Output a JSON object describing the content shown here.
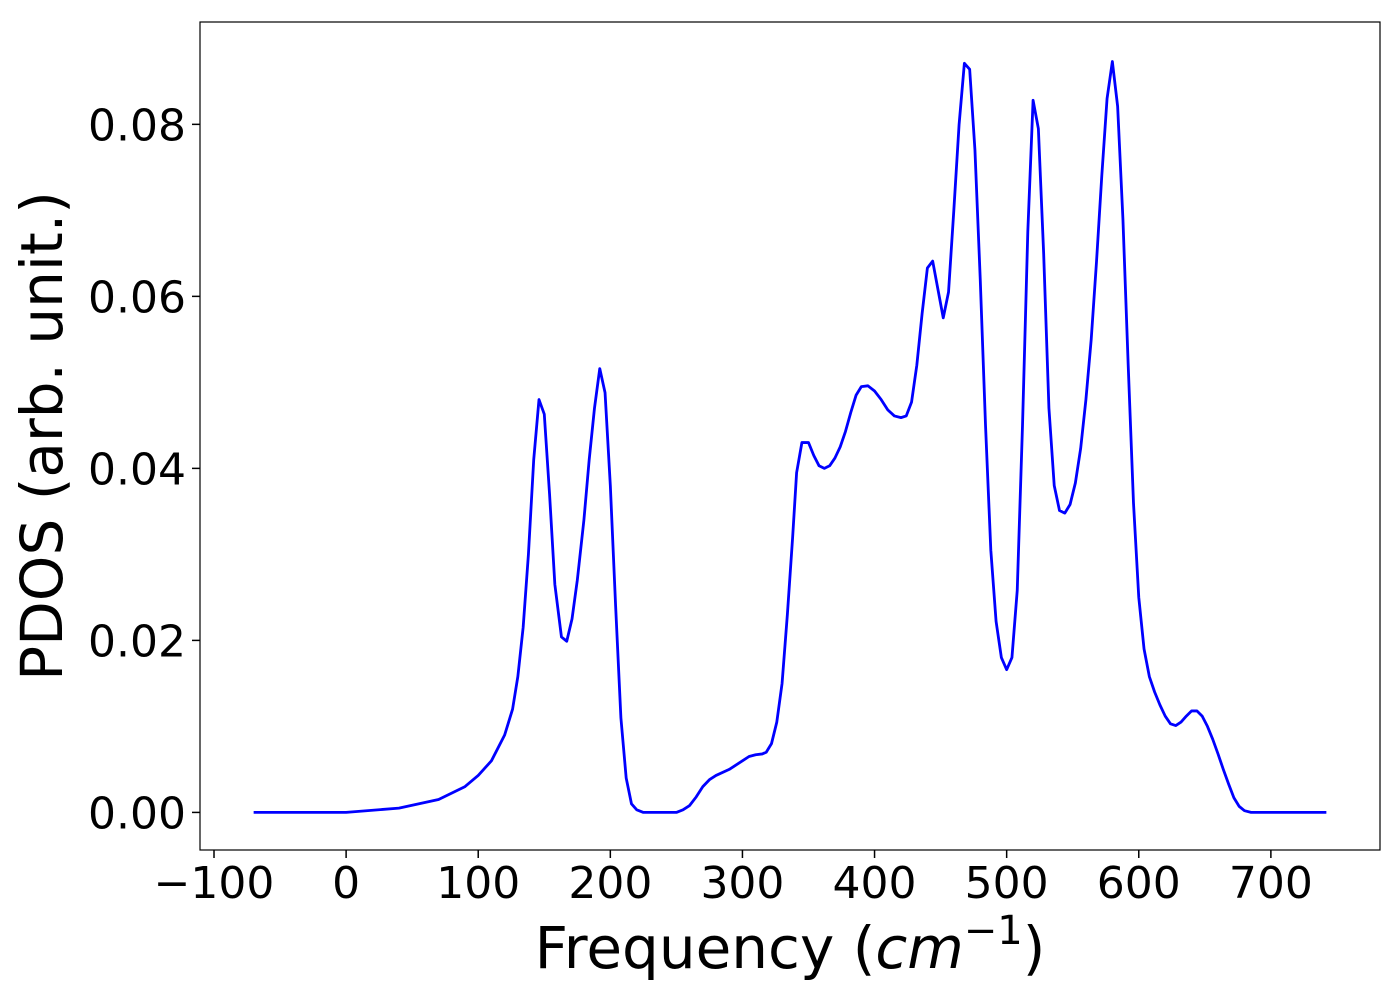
{
  "chart_data": {
    "type": "line",
    "xlabel": [
      "Frequency (",
      "cm",
      "−1",
      ")"
    ],
    "ylabel": "PDOS (arb. unit.)",
    "color": "#0000ff",
    "x": [
      -70,
      0,
      40,
      70,
      90,
      100,
      110,
      120,
      126,
      130,
      134,
      138,
      142,
      146,
      150,
      154,
      158,
      163,
      167,
      171,
      175,
      180,
      184,
      188,
      192,
      196,
      200,
      204,
      208,
      212,
      216,
      220,
      225,
      250,
      255,
      260,
      265,
      270,
      275,
      280,
      290,
      300,
      305,
      310,
      315,
      318,
      322,
      326,
      330,
      334,
      338,
      341,
      345,
      350,
      354,
      358,
      362,
      366,
      370,
      374,
      378,
      382,
      386,
      390,
      395,
      400,
      405,
      410,
      415,
      420,
      424,
      428,
      432,
      436,
      440,
      444,
      448,
      452,
      456,
      460,
      464,
      468,
      472,
      476,
      480,
      484,
      488,
      492,
      496,
      500,
      504,
      508,
      512,
      516,
      520,
      524,
      528,
      532,
      536,
      540,
      544,
      548,
      552,
      556,
      560,
      564,
      568,
      572,
      576,
      580,
      584,
      588,
      592,
      596,
      600,
      604,
      608,
      612,
      616,
      620,
      624,
      628,
      632,
      636,
      640,
      644,
      648,
      652,
      656,
      660,
      664,
      668,
      672,
      676,
      680,
      685,
      742
    ],
    "values": [
      0,
      0,
      0.0005,
      0.0015,
      0.003,
      0.0043,
      0.006,
      0.009,
      0.012,
      0.0158,
      0.0215,
      0.03,
      0.041,
      0.048,
      0.0463,
      0.037,
      0.0265,
      0.0204,
      0.0199,
      0.0225,
      0.027,
      0.034,
      0.041,
      0.047,
      0.0516,
      0.0488,
      0.038,
      0.024,
      0.011,
      0.004,
      0.001,
      0.0003,
      0,
      0,
      0.0003,
      0.0008,
      0.0018,
      0.003,
      0.0038,
      0.0043,
      0.005,
      0.006,
      0.0065,
      0.0067,
      0.0068,
      0.007,
      0.008,
      0.0105,
      0.015,
      0.023,
      0.032,
      0.0395,
      0.043,
      0.043,
      0.0415,
      0.0403,
      0.04,
      0.0403,
      0.0412,
      0.0425,
      0.0443,
      0.0465,
      0.0485,
      0.0495,
      0.0496,
      0.049,
      0.048,
      0.0468,
      0.0461,
      0.0459,
      0.0461,
      0.0477,
      0.052,
      0.058,
      0.0633,
      0.0641,
      0.0608,
      0.0575,
      0.0605,
      0.07,
      0.08,
      0.0871,
      0.0864,
      0.077,
      0.062,
      0.045,
      0.0305,
      0.0222,
      0.018,
      0.0166,
      0.018,
      0.0258,
      0.045,
      0.0675,
      0.0828,
      0.0795,
      0.065,
      0.047,
      0.038,
      0.0351,
      0.0348,
      0.0358,
      0.0383,
      0.0423,
      0.048,
      0.055,
      0.064,
      0.074,
      0.083,
      0.0873,
      0.0821,
      0.069,
      0.052,
      0.036,
      0.025,
      0.019,
      0.0158,
      0.014,
      0.0125,
      0.0112,
      0.0103,
      0.0101,
      0.0105,
      0.0112,
      0.0118,
      0.0118,
      0.0112,
      0.01,
      0.0085,
      0.0068,
      0.005,
      0.0033,
      0.0017,
      0.0007,
      0.0002,
      0,
      0
    ],
    "xlim": [
      -110.6,
      782.6
    ],
    "xticks": [
      {
        "value": -100,
        "label": "−100"
      },
      0,
      100,
      200,
      300,
      400,
      500,
      600,
      700
    ],
    "ylim": [
      -0.00437,
      0.0919
    ],
    "yticks": [
      {
        "value": 0,
        "label": "0.00"
      },
      {
        "value": 0.02,
        "label": "0.02"
      },
      {
        "value": 0.04,
        "label": "0.04"
      },
      {
        "value": 0.06,
        "label": "0.06"
      },
      {
        "value": 0.08,
        "label": "0.08"
      }
    ],
    "grid": false
  }
}
